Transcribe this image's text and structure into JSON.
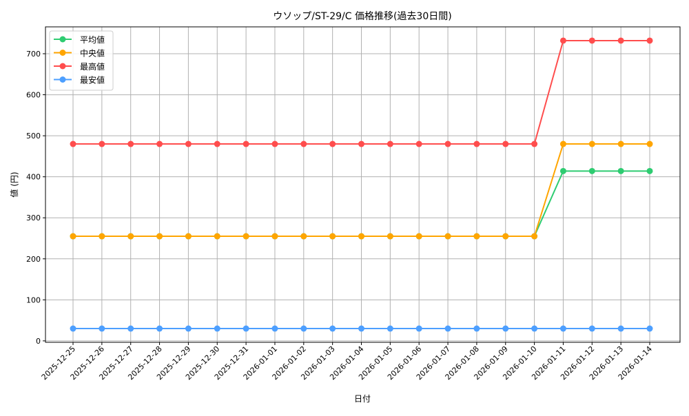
{
  "chart_data": {
    "type": "line",
    "title": "ウソップ/ST-29/C 価格推移(過去30日間)",
    "xlabel": "日付",
    "ylabel": "値 (円)",
    "ylim": [
      -3.5,
      765.5
    ],
    "yticks": [
      0,
      100,
      200,
      300,
      400,
      500,
      600,
      700
    ],
    "grid": true,
    "legend_position": "top-left",
    "categories": [
      "2025-12-25",
      "2025-12-26",
      "2025-12-27",
      "2025-12-28",
      "2025-12-29",
      "2025-12-30",
      "2025-12-31",
      "2026-01-01",
      "2026-01-02",
      "2026-01-03",
      "2026-01-04",
      "2026-01-05",
      "2026-01-06",
      "2026-01-07",
      "2026-01-08",
      "2026-01-09",
      "2026-01-10",
      "2026-01-11",
      "2026-01-12",
      "2026-01-13",
      "2026-01-14"
    ],
    "series": [
      {
        "name": "平均値",
        "color": "#2ecc71",
        "values": [
          255,
          255,
          255,
          255,
          255,
          255,
          255,
          255,
          255,
          255,
          255,
          255,
          255,
          255,
          255,
          255,
          255,
          414,
          414,
          414,
          414
        ]
      },
      {
        "name": "中央値",
        "color": "#ffa500",
        "values": [
          255,
          255,
          255,
          255,
          255,
          255,
          255,
          255,
          255,
          255,
          255,
          255,
          255,
          255,
          255,
          255,
          255,
          480,
          480,
          480,
          480
        ]
      },
      {
        "name": "最高値",
        "color": "#ff4d4d",
        "values": [
          480,
          480,
          480,
          480,
          480,
          480,
          480,
          480,
          480,
          480,
          480,
          480,
          480,
          480,
          480,
          480,
          480,
          732,
          732,
          732,
          732
        ]
      },
      {
        "name": "最安値",
        "color": "#4d9fff",
        "values": [
          30,
          30,
          30,
          30,
          30,
          30,
          30,
          30,
          30,
          30,
          30,
          30,
          30,
          30,
          30,
          30,
          30,
          30,
          30,
          30,
          30
        ]
      }
    ]
  }
}
